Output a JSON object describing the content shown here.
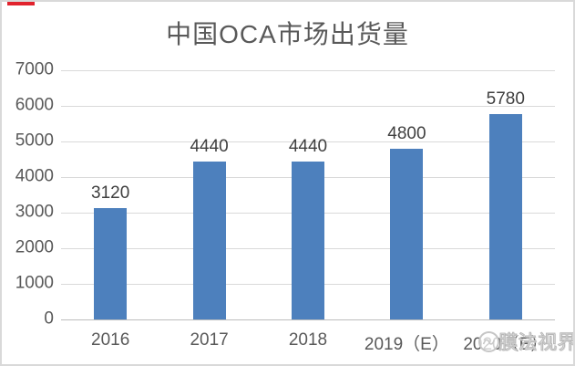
{
  "chart_data": {
    "type": "bar",
    "title": "中国OCA市场出货量",
    "categories": [
      "2016",
      "2017",
      "2018",
      "2019（E）",
      "2020（E）"
    ],
    "values": [
      3120,
      4440,
      4440,
      4800,
      5780
    ],
    "xlabel": "",
    "ylabel": "",
    "ylim": [
      0,
      7000
    ],
    "ytick_step": 1000,
    "yticks": [
      0,
      1000,
      2000,
      3000,
      4000,
      5000,
      6000,
      7000
    ],
    "grid": true,
    "legend": "none",
    "data_labels": true,
    "bar_color": "#4d80bd"
  },
  "watermark": {
    "text": "膜法视界",
    "logo": "circle-scribble-logo"
  },
  "colors": {
    "bar": "#4d80bd",
    "gridline": "#d9d9d9",
    "axis_line": "#bdbdbd",
    "tick_text": "#595959",
    "title_text": "#595959",
    "value_label_text": "#3f3f3f",
    "watermark_gray": "#b7b7b7",
    "accent_red": "#e1232d",
    "frame_border": "#d9d9d9"
  }
}
